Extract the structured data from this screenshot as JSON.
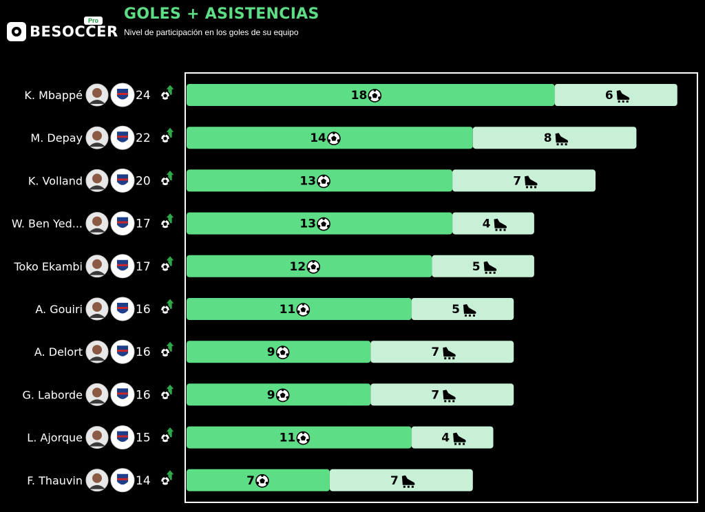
{
  "header": {
    "title": "GOLES + ASISTENCIAS",
    "subtitle": "Nivel de participación en los goles de su equipo",
    "logo_text": "BESOCCER",
    "logo_badge": "Pro"
  },
  "colors": {
    "goals": "#5ddd85",
    "assists": "#c8f0d6",
    "title": "#5ddd85",
    "background": "#000000",
    "trend": "#2ea84a"
  },
  "icons": {
    "goal": "soccer-ball-icon",
    "assist": "boot-icon",
    "trend": "up-arrow-icon"
  },
  "chart_data": {
    "type": "bar",
    "stacked": true,
    "orientation": "horizontal",
    "categories": [
      "K. Mbappé",
      "M. Depay",
      "K. Volland",
      "W. Ben Yed...",
      "Toko Ekambi",
      "A. Gouiri",
      "A. Delort",
      "G. Laborde",
      "L. Ajorque",
      "F. Thauvin"
    ],
    "totals": [
      24,
      22,
      20,
      17,
      17,
      16,
      16,
      16,
      15,
      14
    ],
    "series": [
      {
        "key": "goals",
        "values": [
          18,
          14,
          13,
          13,
          12,
          11,
          9,
          9,
          11,
          7
        ]
      },
      {
        "key": "assists",
        "values": [
          6,
          8,
          7,
          4,
          5,
          5,
          7,
          7,
          4,
          7
        ]
      }
    ],
    "xlim": [
      0,
      24
    ],
    "grid": false,
    "legend": "none"
  }
}
